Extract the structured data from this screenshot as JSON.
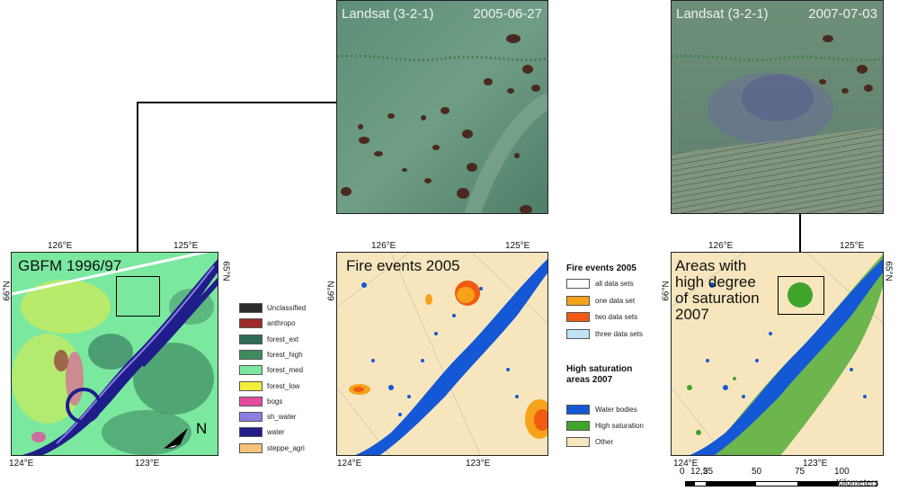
{
  "sat_left": {
    "title": "Landsat (3-2-1)",
    "date": "2005-06-27"
  },
  "sat_right": {
    "title": "Landsat (3-2-1)",
    "date": "2007-07-03"
  },
  "panel1": {
    "title": "GBFM 1996/97",
    "north": "N"
  },
  "panel2": {
    "title": "Fire events 2005"
  },
  "panel3": {
    "title": "Areas with\nhigh degree\nof saturation\n2007"
  },
  "coords": {
    "lon_top_left": "126°E",
    "lon_top_right": "125°E",
    "lon_bottom_left": "124°E",
    "lon_bottom_right": "123°E",
    "lat_left": "66°N",
    "lat_right": "65°N"
  },
  "legend_gbfm": [
    {
      "label": "Unclassified",
      "color": "#2b2b2b"
    },
    {
      "label": "anthropo",
      "color": "#9c2b2b"
    },
    {
      "label": "forest_ext",
      "color": "#2f6b57"
    },
    {
      "label": "forest_high",
      "color": "#3f8a5f"
    },
    {
      "label": "forest_med",
      "color": "#7be8a0"
    },
    {
      "label": "forest_low",
      "color": "#f2ef3a"
    },
    {
      "label": "bogs",
      "color": "#e64a9e"
    },
    {
      "label": "sh_water",
      "color": "#8a7ee0"
    },
    {
      "label": "water",
      "color": "#1f1d8a"
    },
    {
      "label": "steppe_agri",
      "color": "#f6c27c"
    }
  ],
  "legend_fire": {
    "heading": "Fire events 2005",
    "items": [
      {
        "label": "all data sets",
        "color": "#ffffff"
      },
      {
        "label": "one data set",
        "color": "#f6a21a"
      },
      {
        "label": "two data sets",
        "color": "#f25a12"
      },
      {
        "label": "three data sets",
        "color": "#bfe3f5"
      }
    ]
  },
  "legend_saturation": {
    "heading": "High saturation\nareas 2007",
    "items": [
      {
        "label": "Water bodies",
        "color": "#1558d6"
      },
      {
        "label": "High saturation",
        "color": "#3fa52a"
      },
      {
        "label": "Other",
        "color": "#f7e6bd"
      }
    ]
  },
  "scalebar": {
    "labels": [
      "0",
      "12,5",
      "25",
      "50",
      "75",
      "100"
    ],
    "unit": "Kilometers"
  }
}
